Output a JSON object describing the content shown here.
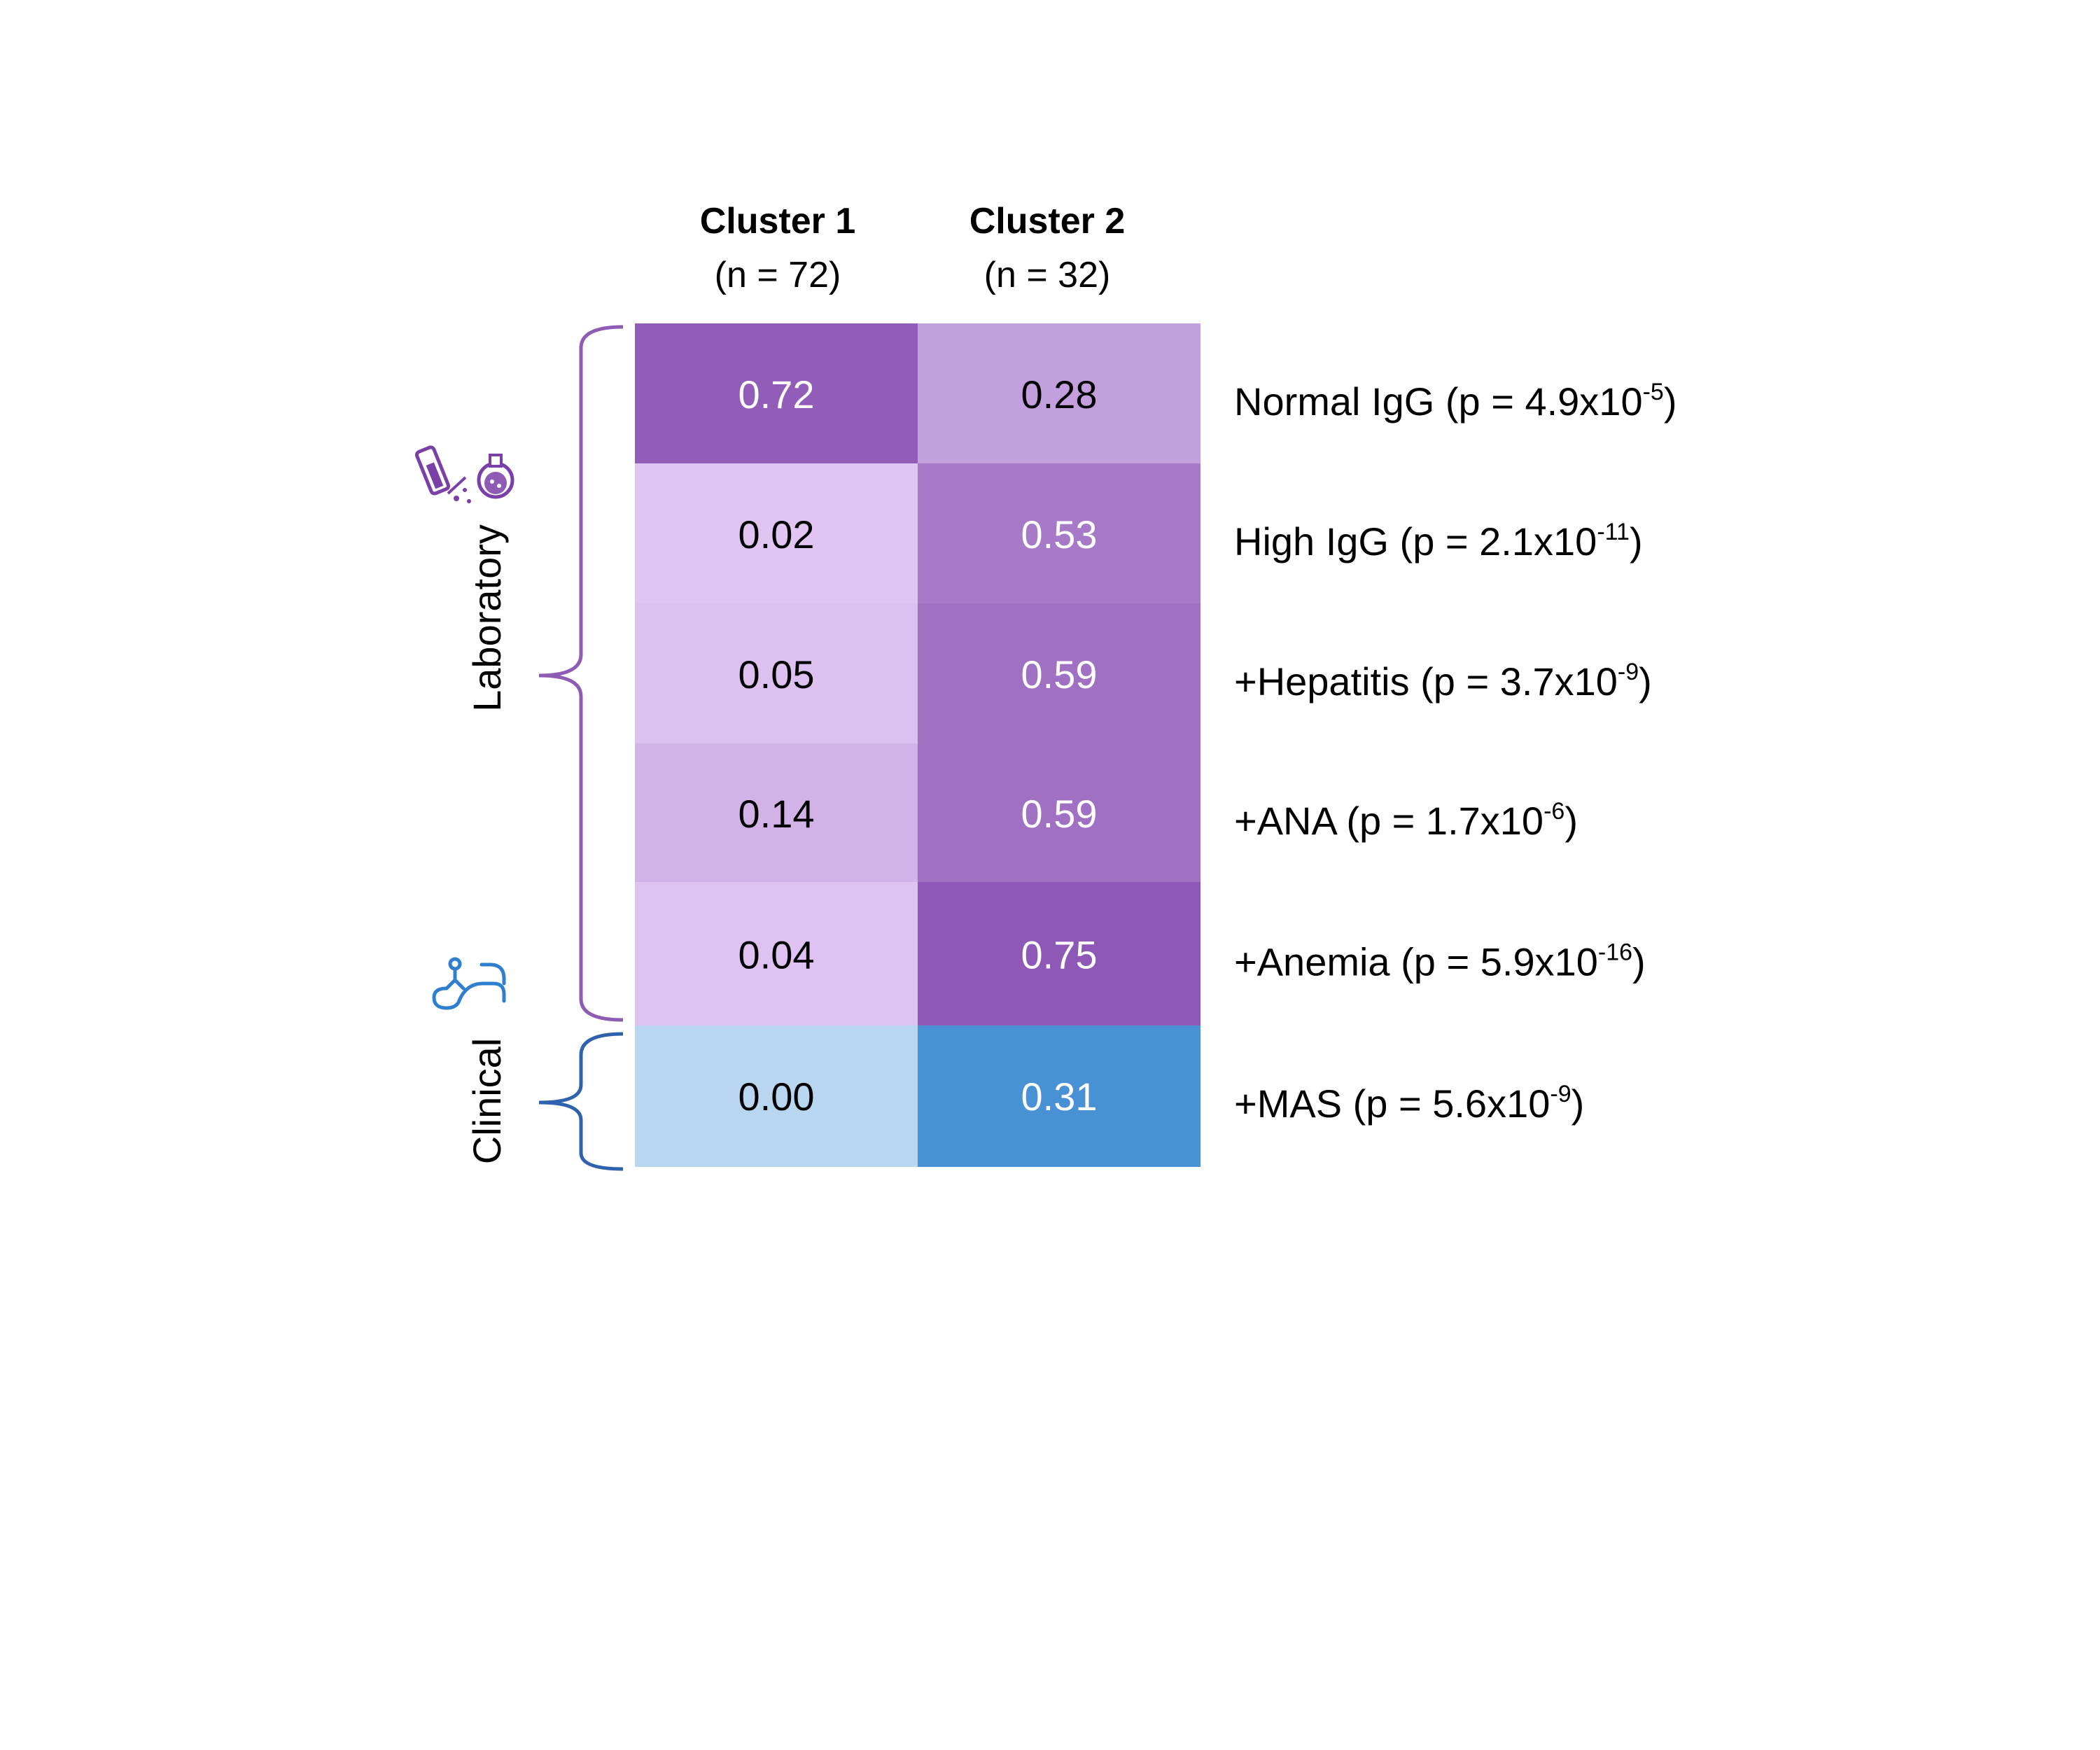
{
  "chart_data": {
    "type": "heatmap",
    "columns": [
      {
        "title": "Cluster 1",
        "subtitle": "(n = 72)"
      },
      {
        "title": "Cluster 2",
        "subtitle": "(n = 32)"
      }
    ],
    "rows": [
      {
        "label_main": "Normal IgG (p = 4.9x10",
        "label_exp": "-5",
        "label_end": ")",
        "group": "Laboratory",
        "values": [
          0.72,
          0.28
        ],
        "value_labels": [
          "0.72",
          "0.28"
        ]
      },
      {
        "label_main": "High IgG (p = 2.1x10",
        "label_exp": "-11",
        "label_end": ")",
        "group": "Laboratory",
        "values": [
          0.02,
          0.53
        ],
        "value_labels": [
          "0.02",
          "0.53"
        ]
      },
      {
        "label_main": "+Hepatitis (p = 3.7x10",
        "label_exp": "-9",
        "label_end": ")",
        "group": "Laboratory",
        "values": [
          0.05,
          0.59
        ],
        "value_labels": [
          "0.05",
          "0.59"
        ]
      },
      {
        "label_main": "+ANA (p = 1.7x10",
        "label_exp": "-6",
        "label_end": ")",
        "group": "Laboratory",
        "values": [
          0.14,
          0.59
        ],
        "value_labels": [
          "0.14",
          "0.59"
        ]
      },
      {
        "label_main": "+Anemia (p = 5.9x10",
        "label_exp": "-16",
        "label_end": ")",
        "group": "Laboratory",
        "values": [
          0.04,
          0.75
        ],
        "value_labels": [
          "0.04",
          "0.75"
        ]
      },
      {
        "label_main": "+MAS (p = 5.6x10",
        "label_exp": "-9",
        "label_end": ")",
        "group": "Clinical",
        "values": [
          0.0,
          0.31
        ],
        "value_labels": [
          "0.00",
          "0.31"
        ]
      }
    ],
    "groups": [
      {
        "name": "Laboratory",
        "icon": "flask-icon",
        "color": "#8E5BB5"
      },
      {
        "name": "Clinical",
        "icon": "stethoscope-icon",
        "color": "#2F62AE"
      }
    ],
    "colors": {
      "Laboratory": [
        "#E2C8F4",
        "#8E59B6"
      ],
      "Clinical": [
        "#B8D6F0",
        "#4891D4"
      ]
    }
  }
}
